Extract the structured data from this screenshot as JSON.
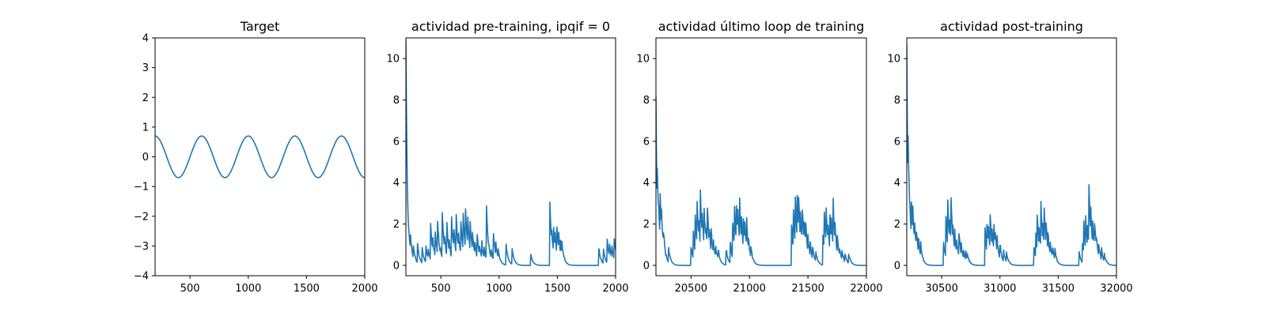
{
  "chart_data": [
    {
      "type": "line",
      "title": "Target",
      "xlim": [
        200,
        2000
      ],
      "ylim": [
        -4,
        4
      ],
      "xticks": [
        500,
        1000,
        1500,
        2000
      ],
      "yticks": [
        -4,
        -3,
        -2,
        -1,
        0,
        1,
        2,
        3,
        4
      ],
      "series": [
        {
          "kind": "sine",
          "amplitude": 0.7,
          "period": 400,
          "peak_at": 200,
          "x_start": 200,
          "x_end": 2000,
          "samples": 361,
          "color": "#1f77b4"
        }
      ]
    },
    {
      "type": "line",
      "title": "actividad pre-training, ipqif = 0",
      "xlim": [
        200,
        2000
      ],
      "ylim": [
        -0.5,
        11
      ],
      "xticks": [
        500,
        1000,
        1500,
        2000
      ],
      "yticks": [
        0,
        2,
        4,
        6,
        8,
        10
      ],
      "series": [
        {
          "kind": "spikes",
          "x_start": 200,
          "x_end": 2000,
          "step": 4,
          "initial": 10.9,
          "initial_decay": 12,
          "decay": 18,
          "jitter": 0.2,
          "color": "#1f77b4",
          "events": [
            [
              220,
              2.2
            ],
            [
              240,
              1.4
            ],
            [
              262,
              1.1
            ],
            [
              300,
              1.0
            ],
            [
              338,
              0.9
            ],
            [
              372,
              1.0
            ],
            [
              392,
              0.8
            ],
            [
              410,
              2.3
            ],
            [
              432,
              1.3
            ],
            [
              452,
              1.7
            ],
            [
              472,
              2.2
            ],
            [
              493,
              1.0
            ],
            [
              512,
              2.5
            ],
            [
              532,
              1.4
            ],
            [
              552,
              2.0
            ],
            [
              572,
              1.2
            ],
            [
              592,
              2.4
            ],
            [
              612,
              1.8
            ],
            [
              632,
              2.5
            ],
            [
              652,
              1.6
            ],
            [
              672,
              2.1
            ],
            [
              692,
              2.6
            ],
            [
              712,
              2.8
            ],
            [
              732,
              2.3
            ],
            [
              752,
              2.1
            ],
            [
              772,
              1.6
            ],
            [
              792,
              1.2
            ],
            [
              812,
              1.5
            ],
            [
              832,
              1.0
            ],
            [
              852,
              1.1
            ],
            [
              872,
              0.9
            ],
            [
              892,
              2.8
            ],
            [
              912,
              1.0
            ],
            [
              932,
              0.8
            ],
            [
              952,
              1.6
            ],
            [
              972,
              1.1
            ],
            [
              990,
              0.9
            ],
            [
              1060,
              1.0
            ],
            [
              1110,
              0.9
            ],
            [
              1270,
              0.6
            ],
            [
              1435,
              3.2
            ],
            [
              1450,
              1.9
            ],
            [
              1465,
              2.2
            ],
            [
              1480,
              1.6
            ],
            [
              1495,
              2.0
            ],
            [
              1510,
              1.7
            ],
            [
              1525,
              1.4
            ],
            [
              1540,
              1.1
            ],
            [
              1855,
              0.9
            ],
            [
              1895,
              0.8
            ],
            [
              1925,
              1.5
            ],
            [
              1945,
              1.2
            ],
            [
              1965,
              1.1
            ],
            [
              1985,
              1.6
            ]
          ]
        }
      ]
    },
    {
      "type": "line",
      "title": "actividad último loop de training",
      "xlim": [
        20200,
        22000
      ],
      "ylim": [
        -0.5,
        11
      ],
      "xticks": [
        20500,
        21000,
        21500,
        22000
      ],
      "yticks": [
        0,
        2,
        4,
        6,
        8,
        10
      ],
      "series": [
        {
          "kind": "spikes",
          "x_start": 20200,
          "x_end": 22000,
          "step": 4,
          "initial": 8.2,
          "initial_decay": 10,
          "decay": 18,
          "jitter": 0.3,
          "color": "#1f77b4",
          "events": [
            [
              20210,
              5.2
            ],
            [
              20222,
              3.1
            ],
            [
              20235,
              3.6
            ],
            [
              20248,
              2.6
            ],
            [
              20262,
              1.9
            ],
            [
              20305,
              1.0
            ],
            [
              20500,
              0.9
            ],
            [
              20520,
              1.6
            ],
            [
              20535,
              2.7
            ],
            [
              20550,
              3.4
            ],
            [
              20565,
              2.4
            ],
            [
              20580,
              3.5
            ],
            [
              20595,
              2.8
            ],
            [
              20610,
              3.2
            ],
            [
              20625,
              2.2
            ],
            [
              20640,
              2.9
            ],
            [
              20655,
              1.8
            ],
            [
              20670,
              2.1
            ],
            [
              20690,
              1.4
            ],
            [
              20710,
              1.0
            ],
            [
              20730,
              0.9
            ],
            [
              20800,
              0.8
            ],
            [
              20835,
              1.2
            ],
            [
              20855,
              2.2
            ],
            [
              20870,
              3.1
            ],
            [
              20885,
              3.5
            ],
            [
              20900,
              2.6
            ],
            [
              20915,
              3.3
            ],
            [
              20930,
              2.5
            ],
            [
              20945,
              2.8
            ],
            [
              20960,
              2.0
            ],
            [
              20975,
              2.3
            ],
            [
              20990,
              1.4
            ],
            [
              21010,
              1.0
            ],
            [
              21360,
              2.0
            ],
            [
              21375,
              2.9
            ],
            [
              21390,
              3.8
            ],
            [
              21405,
              4.0
            ],
            [
              21420,
              3.4
            ],
            [
              21435,
              2.8
            ],
            [
              21450,
              3.1
            ],
            [
              21465,
              2.6
            ],
            [
              21480,
              2.2
            ],
            [
              21500,
              1.5
            ],
            [
              21520,
              1.1
            ],
            [
              21540,
              0.9
            ],
            [
              21565,
              0.7
            ],
            [
              21625,
              1.9
            ],
            [
              21640,
              2.6
            ],
            [
              21655,
              3.0
            ],
            [
              21670,
              2.3
            ],
            [
              21685,
              2.8
            ],
            [
              21700,
              2.4
            ],
            [
              21715,
              3.3
            ],
            [
              21730,
              2.2
            ],
            [
              21750,
              1.5
            ],
            [
              21770,
              1.0
            ],
            [
              21790,
              0.8
            ],
            [
              21815,
              0.6
            ],
            [
              21845,
              0.7
            ]
          ]
        }
      ]
    },
    {
      "type": "line",
      "title": "actividad post-training",
      "xlim": [
        30200,
        32000
      ],
      "ylim": [
        -0.5,
        11
      ],
      "xticks": [
        30500,
        31000,
        31500,
        32000
      ],
      "yticks": [
        0,
        2,
        4,
        6,
        8,
        10
      ],
      "series": [
        {
          "kind": "spikes",
          "x_start": 30200,
          "x_end": 32000,
          "step": 4,
          "initial": 10.8,
          "initial_decay": 10,
          "decay": 18,
          "jitter": 0.3,
          "color": "#1f77b4",
          "events": [
            [
              30212,
              6.2
            ],
            [
              30225,
              3.3
            ],
            [
              30238,
              3.6
            ],
            [
              30252,
              2.8
            ],
            [
              30266,
              2.4
            ],
            [
              30282,
              1.8
            ],
            [
              30300,
              1.4
            ],
            [
              30320,
              1.0
            ],
            [
              30515,
              1.2
            ],
            [
              30535,
              2.4
            ],
            [
              30550,
              3.4
            ],
            [
              30565,
              2.6
            ],
            [
              30580,
              3.2
            ],
            [
              30595,
              2.2
            ],
            [
              30610,
              1.8
            ],
            [
              30625,
              1.5
            ],
            [
              30645,
              1.9
            ],
            [
              30665,
              1.2
            ],
            [
              30685,
              0.9
            ],
            [
              30705,
              0.8
            ],
            [
              30720,
              0.6
            ],
            [
              30870,
              2.0
            ],
            [
              30885,
              2.5
            ],
            [
              30900,
              1.9
            ],
            [
              30915,
              2.6
            ],
            [
              30930,
              2.1
            ],
            [
              30945,
              2.3
            ],
            [
              30960,
              1.6
            ],
            [
              30975,
              1.4
            ],
            [
              31000,
              1.1
            ],
            [
              31030,
              0.8
            ],
            [
              31055,
              0.7
            ],
            [
              31290,
              1.1
            ],
            [
              31305,
              1.8
            ],
            [
              31320,
              2.4
            ],
            [
              31335,
              2.0
            ],
            [
              31350,
              3.4
            ],
            [
              31365,
              2.5
            ],
            [
              31380,
              2.7
            ],
            [
              31395,
              2.2
            ],
            [
              31410,
              1.8
            ],
            [
              31430,
              1.3
            ],
            [
              31450,
              1.0
            ],
            [
              31470,
              0.8
            ],
            [
              31680,
              0.6
            ],
            [
              31705,
              1.4
            ],
            [
              31720,
              2.1
            ],
            [
              31735,
              2.6
            ],
            [
              31750,
              2.3
            ],
            [
              31763,
              4.1
            ],
            [
              31778,
              3.0
            ],
            [
              31795,
              2.2
            ],
            [
              31810,
              2.4
            ],
            [
              31825,
              1.7
            ],
            [
              31845,
              1.2
            ],
            [
              31870,
              0.9
            ],
            [
              31895,
              0.6
            ]
          ]
        }
      ]
    }
  ]
}
